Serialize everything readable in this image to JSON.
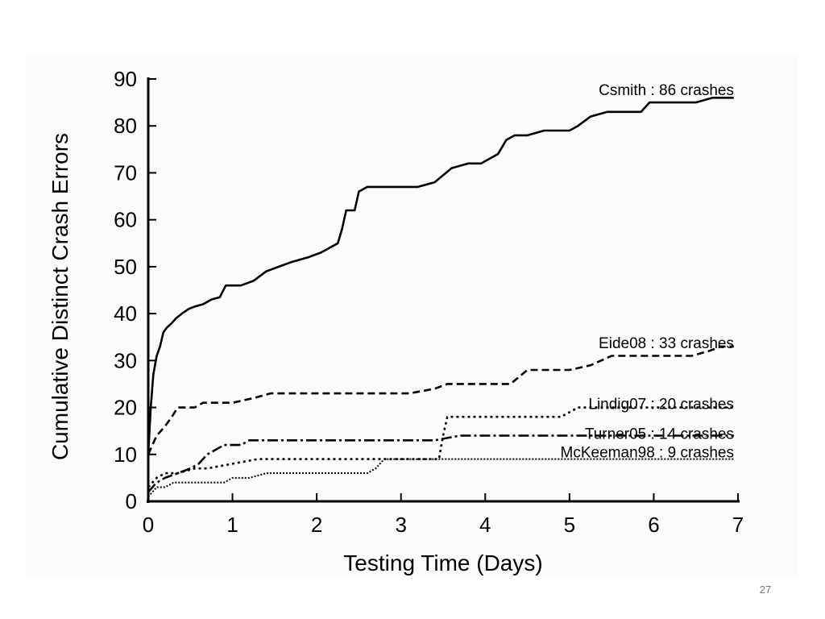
{
  "slide": {
    "number": "27"
  },
  "chart_data": {
    "type": "line",
    "title": "",
    "xlabel": "Testing Time (Days)",
    "ylabel": "Cumulative Distinct Crash Errors",
    "xlim": [
      0,
      7
    ],
    "ylim": [
      0,
      90
    ],
    "xticks": [
      0,
      1,
      2,
      3,
      4,
      5,
      6,
      7
    ],
    "yticks": [
      0,
      10,
      20,
      30,
      40,
      50,
      60,
      70,
      80,
      90
    ],
    "grid": false,
    "legend": "inline labels at right end of each series",
    "series": [
      {
        "name": "Csmith : 86 crashes",
        "style": "solid",
        "x": [
          0,
          0.03,
          0.06,
          0.1,
          0.14,
          0.18,
          0.22,
          0.28,
          0.33,
          0.4,
          0.48,
          0.55,
          0.65,
          0.75,
          0.85,
          0.92,
          1.0,
          1.1,
          1.25,
          1.4,
          1.55,
          1.7,
          1.9,
          2.05,
          2.15,
          2.25,
          2.3,
          2.35,
          2.45,
          2.5,
          2.6,
          2.75,
          3.0,
          3.2,
          3.4,
          3.6,
          3.8,
          3.95,
          4.05,
          4.15,
          4.25,
          4.35,
          4.5,
          4.7,
          4.9,
          5.0,
          5.1,
          5.25,
          5.45,
          5.65,
          5.85,
          5.95,
          6.1,
          6.3,
          6.5,
          6.7,
          6.85,
          6.95
        ],
        "y": [
          10,
          20,
          27,
          31,
          33,
          36,
          37,
          38,
          39,
          40,
          41,
          41.5,
          42,
          43,
          43.5,
          46,
          46,
          46,
          47,
          49,
          50,
          51,
          52,
          53,
          54,
          55,
          58,
          62,
          62,
          66,
          67,
          67,
          67,
          67,
          68,
          71,
          72,
          72,
          73,
          74,
          77,
          78,
          78,
          79,
          79,
          79,
          80,
          82,
          83,
          83,
          83,
          85,
          85,
          85,
          85,
          86,
          86,
          86
        ]
      },
      {
        "name": "Eide08 : 33 crashes",
        "style": "dashed",
        "x": [
          0,
          0.05,
          0.1,
          0.15,
          0.2,
          0.28,
          0.35,
          0.45,
          0.55,
          0.65,
          0.8,
          1.0,
          1.25,
          1.45,
          1.7,
          2.0,
          2.4,
          2.8,
          3.1,
          3.4,
          3.55,
          3.7,
          4.0,
          4.3,
          4.5,
          4.75,
          5.0,
          5.25,
          5.5,
          5.8,
          6.1,
          6.45,
          6.65,
          6.8,
          6.95
        ],
        "y": [
          10,
          12,
          14,
          15,
          16,
          18,
          20,
          20,
          20,
          21,
          21,
          21,
          22,
          23,
          23,
          23,
          23,
          23,
          23,
          24,
          25,
          25,
          25,
          25,
          28,
          28,
          28,
          29,
          31,
          31,
          31,
          31,
          32,
          33,
          33
        ]
      },
      {
        "name": "Lindig07 : 20 crashes",
        "style": "dotted",
        "x": [
          0,
          0.05,
          0.1,
          0.2,
          0.35,
          0.55,
          0.7,
          1.0,
          1.3,
          1.8,
          2.3,
          2.8,
          3.1,
          3.45,
          3.5,
          3.55,
          3.8,
          4.2,
          4.6,
          4.9,
          5.1,
          5.5,
          6.0,
          6.5,
          6.95
        ],
        "y": [
          3,
          4,
          5,
          6,
          6,
          7,
          7,
          8,
          9,
          9,
          9,
          9,
          9,
          9,
          14,
          18,
          18,
          18,
          18,
          18,
          20,
          20,
          20,
          20,
          20
        ]
      },
      {
        "name": "Turner05 : 14 crashes",
        "style": "dash-dot",
        "x": [
          0,
          0.05,
          0.1,
          0.2,
          0.35,
          0.5,
          0.6,
          0.7,
          0.8,
          0.9,
          1.0,
          1.1,
          1.2,
          1.5,
          1.8,
          2.2,
          2.6,
          3.0,
          3.4,
          3.7,
          4.1,
          4.6,
          5.1,
          5.6,
          6.1,
          6.6,
          6.95
        ],
        "y": [
          2,
          3,
          4,
          5,
          6,
          7,
          8,
          10,
          11,
          12,
          12,
          12,
          13,
          13,
          13,
          13,
          13,
          13,
          13,
          14,
          14,
          14,
          14,
          14,
          14,
          14,
          14
        ]
      },
      {
        "name": "McKeeman98 : 9 crashes",
        "style": "dotted-fine",
        "x": [
          0,
          0.05,
          0.1,
          0.2,
          0.3,
          0.5,
          0.7,
          0.9,
          1.0,
          1.2,
          1.4,
          1.6,
          1.8,
          2.0,
          2.2,
          2.4,
          2.6,
          2.7,
          2.75,
          2.8,
          3.0,
          3.5,
          4.0,
          4.5,
          5.0,
          5.5,
          6.0,
          6.5,
          6.95
        ],
        "y": [
          1,
          2,
          3,
          3,
          4,
          4,
          4,
          4,
          5,
          5,
          6,
          6,
          6,
          6,
          6,
          6,
          6,
          7,
          8,
          9,
          9,
          9,
          9,
          9,
          9,
          9,
          9,
          9,
          9
        ]
      }
    ]
  }
}
